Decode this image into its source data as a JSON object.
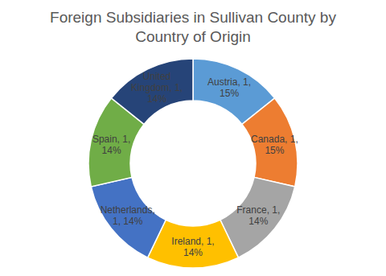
{
  "chart_data": {
    "type": "pie",
    "title": "Foreign Subsidiaries in Sullivan County by Country of Origin",
    "categories": [
      "Austria",
      "Canada",
      "France",
      "Ireland",
      "Netherlands",
      "Spain",
      "United Kingdom"
    ],
    "values": [
      1,
      1,
      1,
      1,
      1,
      1,
      1
    ],
    "value_labels": [
      "Austria, 1, 15%",
      "Canada, 1, 15%",
      "France, 1, 14%",
      "Ireland, 1, 14%",
      "Netherlands, 1, 14%",
      "Spain, 1, 14%",
      "United Kingdom, 1, 14%"
    ],
    "colors": [
      "#5b9bd5",
      "#ed7d31",
      "#a5a5a5",
      "#ffc000",
      "#4472c4",
      "#70ad47",
      "#264478"
    ],
    "data_labels": true
  }
}
